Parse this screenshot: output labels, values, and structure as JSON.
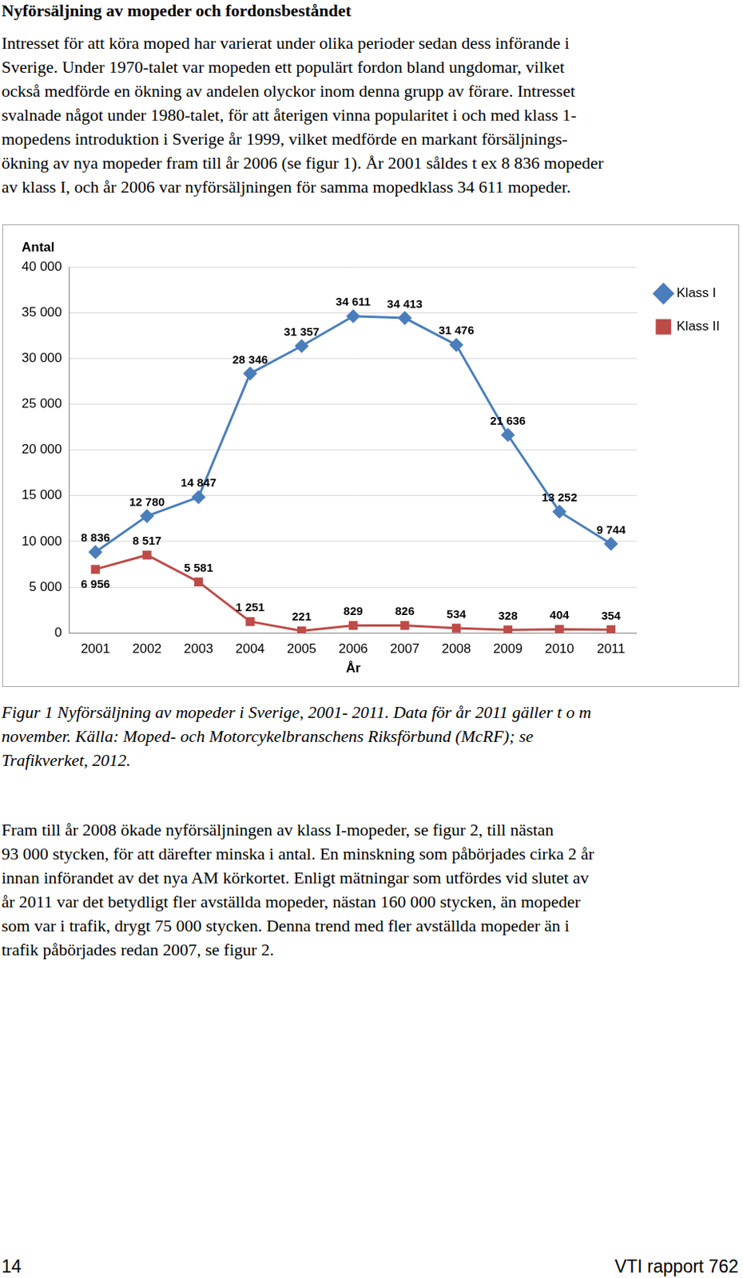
{
  "heading": "Nyförsäljning av mopeder och fordonsbeståndet",
  "paragraph_1": [
    "Intresset för att köra moped har varierat under olika perioder sedan dess införande i",
    "Sverige. Under 1970-talet var mopeden ett populärt fordon bland ungdomar, vilket",
    "också medförde en ökning av andelen olyckor inom denna grupp av förare. Intresset",
    "svalnade något under 1980-talet, för att återigen vinna popularitet i och med klass 1-",
    "mopedens introduktion i Sverige år 1999, vilket medförde en markant försäljnings-",
    "ökning av nya mopeder fram till år 2006 (se figur 1). År 2001 såldes t ex 8 836 mopeder",
    "av klass I, och år 2006 var nyförsäljningen för samma mopedklass 34 611 mopeder."
  ],
  "chart_data": {
    "type": "line",
    "x_label": "År",
    "y_label": "Antal",
    "categories": [
      "2001",
      "2002",
      "2003",
      "2004",
      "2005",
      "2006",
      "2007",
      "2008",
      "2009",
      "2010",
      "2011"
    ],
    "series": [
      {
        "name": "Klass I",
        "color": "#4a7ebb",
        "marker": "diamond",
        "values": [
          8836,
          12780,
          14847,
          28346,
          31357,
          34611,
          34413,
          31476,
          21636,
          13252,
          9744
        ],
        "value_labels": [
          "8 836",
          "12 780",
          "14 847",
          "28 346",
          "31 357",
          "34 611",
          "34 413",
          "31 476",
          "21 636",
          "13 252",
          "9 744"
        ]
      },
      {
        "name": "Klass II",
        "color": "#be4b48",
        "marker": "square",
        "values": [
          6956,
          8517,
          5581,
          1251,
          221,
          829,
          826,
          534,
          328,
          404,
          354
        ],
        "value_labels": [
          "6 956",
          "8 517",
          "5 581",
          "1 251",
          "221",
          "829",
          "826",
          "534",
          "328",
          "404",
          "354"
        ]
      }
    ],
    "ylim": [
      0,
      40000
    ],
    "yticks": [
      0,
      {
        "value": 5000,
        "label": "5 000"
      },
      {
        "value": 10000,
        "label": "10 000"
      },
      {
        "value": 15000,
        "label": "15 000"
      },
      {
        "value": 20000,
        "label": "20 000"
      },
      {
        "value": 25000,
        "label": "25 000"
      },
      {
        "value": 30000,
        "label": "30 000"
      },
      {
        "value": 35000,
        "label": "35 000"
      },
      {
        "value": 40000,
        "label": "40 000"
      }
    ],
    "grid": true,
    "legend": "right",
    "data_labels": true
  },
  "caption": [
    "Figur 1  Nyförsäljning av mopeder i Sverige, 2001- 2011. Data för år 2011 gäller t o m",
    "november. Källa: Moped- och Motorcykelbranschens Riksförbund (McRF); se",
    "Trafikverket, 2012."
  ],
  "paragraph_2": [
    "Fram till år 2008 ökade nyförsäljningen av klass I-mopeder, se figur 2, till nästan",
    "93 000 stycken, för att därefter minska i antal. En minskning som påbörjades cirka 2 år",
    "innan införandet av det nya AM körkortet. Enligt mätningar som utfördes vid slutet av",
    "år 2011 var det betydligt fler avställda mopeder, nästan 160 000 stycken, än mopeder",
    "som var i trafik, drygt 75 000 stycken. Denna trend med fler avställda mopeder än i",
    "trafik påbörjades redan 2007, se figur 2."
  ],
  "footer": {
    "page": "14",
    "report": "VTI rapport 762"
  }
}
